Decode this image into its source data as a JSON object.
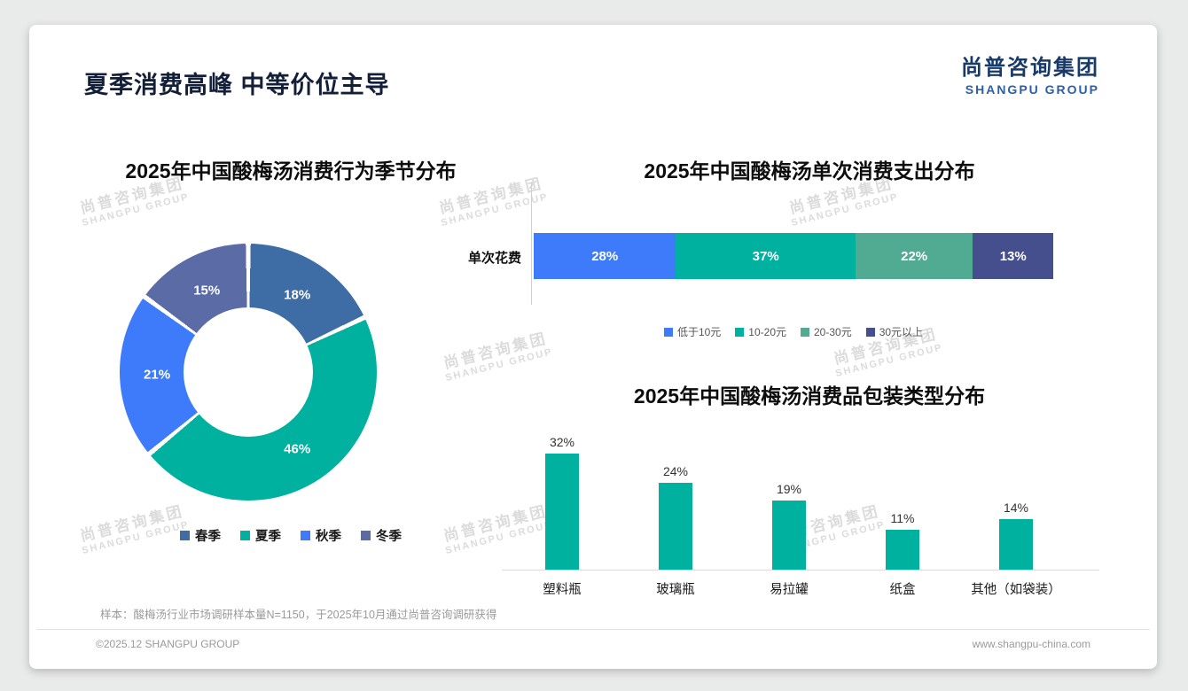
{
  "page": {
    "title": "夏季消费高峰 中等价位主导",
    "logo": {
      "cn": "尚普咨询集团",
      "en": "SHANGPU GROUP"
    },
    "watermark": {
      "cn": "尚普咨询集团",
      "en": "SHANGPU GROUP"
    },
    "footer": {
      "note": "样本：酸梅汤行业市场调研样本量N=1150，于2025年10月通过尚普咨询调研获得",
      "copyright": "©2025.12 SHANGPU GROUP",
      "website": "www.shangpu-china.com"
    }
  },
  "chart_data": [
    {
      "type": "pie",
      "subtype": "donut",
      "title": "2025年中国酸梅汤消费行为季节分布",
      "categories": [
        "春季",
        "夏季",
        "秋季",
        "冬季"
      ],
      "values": [
        18,
        46,
        21,
        15
      ],
      "unit": "%",
      "colors": [
        "#3d6da4",
        "#00b1a0",
        "#3e7bfb",
        "#5b6ba6"
      ],
      "legend_position": "bottom",
      "labels_inside": true
    },
    {
      "type": "bar",
      "subtype": "horizontal-stacked",
      "title": "2025年中国酸梅汤单次消费支出分布",
      "category_label": "单次花费",
      "unit": "%",
      "segments": [
        {
          "label": "低于10元",
          "value": 28,
          "color": "#3e7bfb"
        },
        {
          "label": "10-20元",
          "value": 37,
          "color": "#00b1a0"
        },
        {
          "label": "20-30元",
          "value": 22,
          "color": "#50ab92"
        },
        {
          "label": "30元以上",
          "value": 13,
          "color": "#454f8e"
        }
      ],
      "legend_position": "bottom",
      "xlim": [
        0,
        100
      ]
    },
    {
      "type": "bar",
      "subtype": "vertical",
      "title": "2025年中国酸梅汤消费品包装类型分布",
      "categories": [
        "塑料瓶",
        "玻璃瓶",
        "易拉罐",
        "纸盒",
        "其他（如袋装）"
      ],
      "values": [
        32,
        24,
        19,
        11,
        14
      ],
      "unit": "%",
      "bar_color": "#00b1a0",
      "value_labels": "above",
      "grid": false
    }
  ]
}
